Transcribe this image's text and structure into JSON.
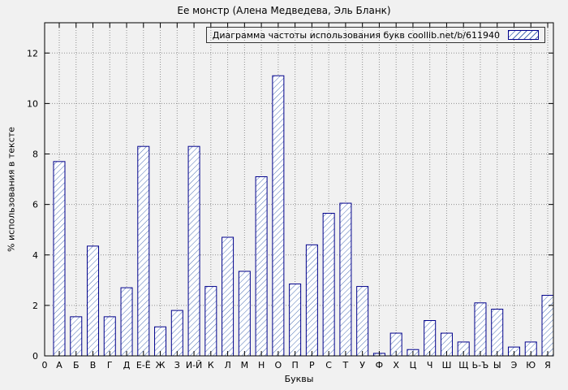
{
  "chart_data": {
    "type": "bar",
    "title": "Ее монстр (Алена Медведева, Эль Бланк)",
    "legend": "Диаграмма частоты использования букв coollib.net/b/611940",
    "xlabel": "Буквы",
    "ylabel": "% использования в тексте",
    "origin_label": "0",
    "categories": [
      "А",
      "Б",
      "В",
      "Г",
      "Д",
      "Е-Ё",
      "Ж",
      "З",
      "И-Й",
      "К",
      "Л",
      "М",
      "Н",
      "О",
      "П",
      "Р",
      "С",
      "Т",
      "У",
      "Ф",
      "Х",
      "Ц",
      "Ч",
      "Ш",
      "Щ",
      "Ь-Ъ",
      "Ы",
      "Э",
      "Ю",
      "Я"
    ],
    "values": [
      7.7,
      1.55,
      4.35,
      1.55,
      2.7,
      8.3,
      1.15,
      1.8,
      8.3,
      2.75,
      4.7,
      3.35,
      7.1,
      11.1,
      2.85,
      4.4,
      5.65,
      6.05,
      2.75,
      0.1,
      0.9,
      0.25,
      1.4,
      0.9,
      0.55,
      2.1,
      1.85,
      0.35,
      0.55,
      2.4
    ],
    "yticks": [
      0,
      2,
      4,
      6,
      8,
      10,
      12
    ],
    "ylim": [
      0,
      13.2
    ],
    "grid": true,
    "legend_position": "top-right-inside",
    "hatch_style": "diagonal-forward-slash",
    "colors": {
      "bar_fill": "#ffffff",
      "hatch": "#4a6fb5",
      "bar_border": "#00008b",
      "background": "#f1f1f1",
      "grid": "#909090",
      "axis": "#000000"
    }
  }
}
